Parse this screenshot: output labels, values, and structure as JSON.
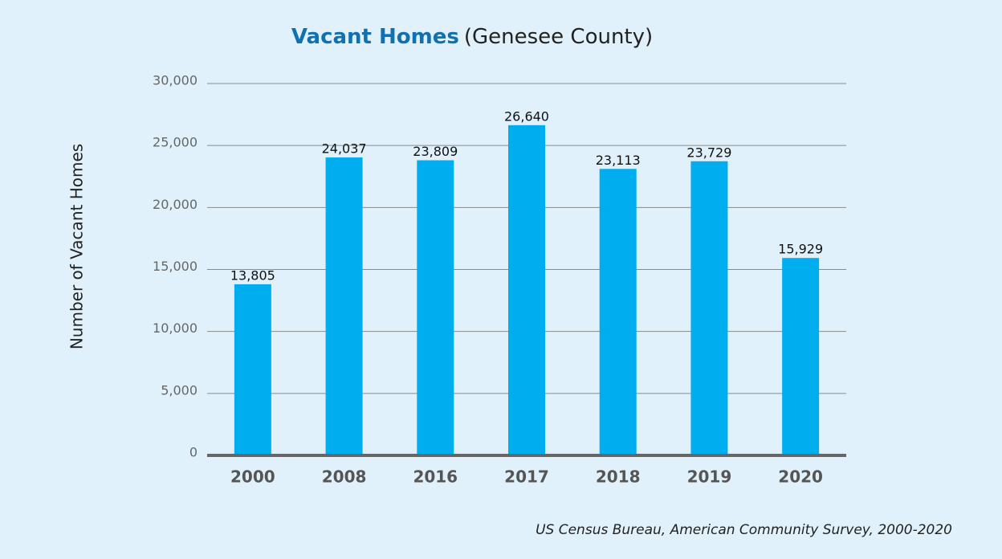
{
  "chart_data": {
    "type": "bar",
    "title": "Vacant Homes",
    "subtitle": "(Genesee County)",
    "ylabel": "Number of Vacant Homes",
    "source": "US Census Bureau, American Community Survey, 2000-2020",
    "categories": [
      "2000",
      "2008",
      "2016",
      "2017",
      "2018",
      "2019",
      "2020"
    ],
    "values": [
      13805,
      24037,
      23809,
      26640,
      23113,
      23729,
      15929
    ],
    "value_labels": [
      "13,805",
      "24,037",
      "23,809",
      "26,640",
      "23,113",
      "23,729",
      "15,929"
    ],
    "color": "#00aeef",
    "ylim": [
      0,
      30000
    ],
    "yticks": [
      0,
      {
        "value": 5000,
        "label": "5,000"
      },
      {
        "value": 10000,
        "label": "10,000"
      },
      {
        "value": 15000,
        "label": "15,000"
      },
      {
        "value": 20000,
        "label": "20,000"
      },
      {
        "value": 25000,
        "label": "25,000"
      },
      {
        "value": 30000,
        "label": "30,000"
      }
    ],
    "grid": true
  }
}
